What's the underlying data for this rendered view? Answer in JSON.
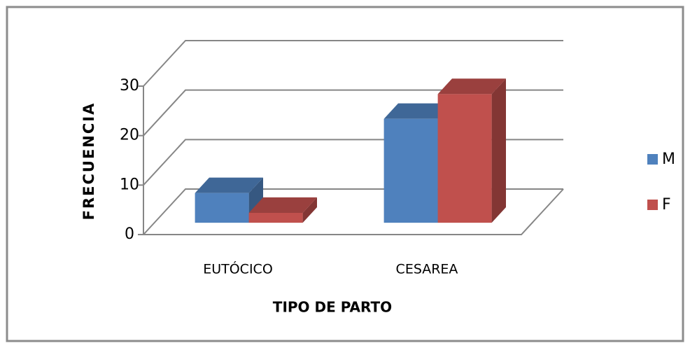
{
  "chart_data": {
    "type": "bar3d",
    "x_label": "TIPO DE PARTO",
    "y_label": "FRECUENCIA",
    "categories": [
      "EUTÓCICO",
      "CESAREA"
    ],
    "series": [
      {
        "name": "M",
        "color": "#4f81bd",
        "values": [
          6,
          21
        ]
      },
      {
        "name": "F",
        "color": "#c0504d",
        "values": [
          2,
          26
        ]
      }
    ],
    "ylim": [
      0,
      30
    ],
    "yticks": [
      0,
      10,
      20,
      30
    ],
    "grid": true,
    "legend": "right"
  }
}
